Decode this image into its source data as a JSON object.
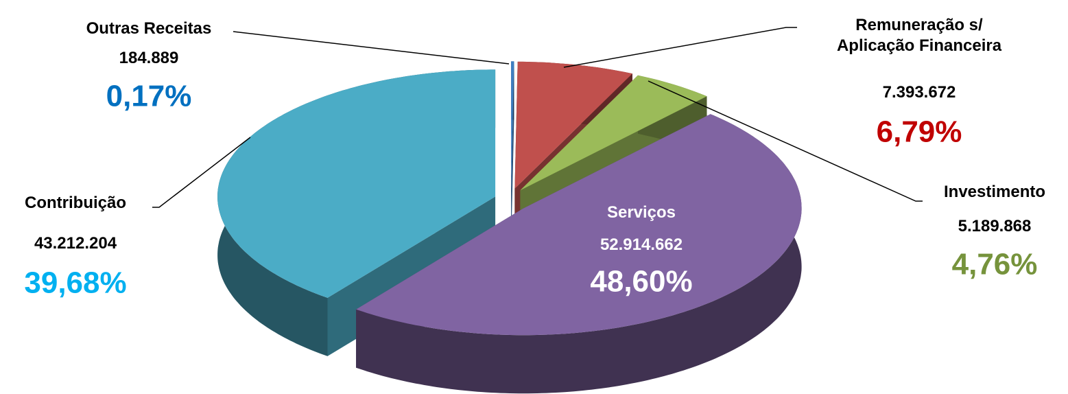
{
  "chart_data": {
    "type": "pie3d",
    "categories": [
      "Outras Receitas",
      "Remuneração s/ Aplicação Financeira",
      "Investimento",
      "Serviços",
      "Contribuição"
    ],
    "values": [
      184889,
      7393672,
      5189868,
      52914662,
      43212204
    ],
    "value_labels": [
      "184.889",
      "7.393.672",
      "5.189.868",
      "52.914.662",
      "43.212.204"
    ],
    "percents": [
      0.17,
      6.79,
      4.76,
      48.6,
      39.68
    ],
    "percent_labels": [
      "0,17%",
      "6,79%",
      "4,76%",
      "48,60%",
      "39,68%"
    ],
    "colors": [
      "#3f7fc2",
      "#c0504d",
      "#9bbb59",
      "#8064a2",
      "#4bacc6"
    ],
    "percent_label_colors": [
      "#0070c0",
      "#c00000",
      "#76933c",
      "#ffffff",
      "#00b0f0"
    ]
  }
}
